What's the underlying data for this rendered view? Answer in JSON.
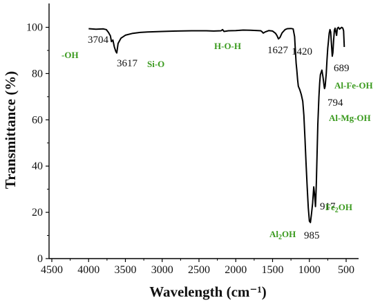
{
  "colors": {
    "line": "#000000",
    "axis": "#000000",
    "annotation_green": "#3a9a1e",
    "peak_text": "#111111"
  },
  "chart_data": {
    "type": "line",
    "title": "",
    "xlabel": "Wavelength (cm⁻¹)",
    "ylabel": "Transmittance (%)",
    "xlim": [
      4500,
      400
    ],
    "ylim": [
      0,
      105
    ],
    "x_reversed": true,
    "x_ticks": [
      4500,
      4000,
      3500,
      3000,
      2500,
      2000,
      1500,
      1000,
      500
    ],
    "y_ticks": [
      0,
      20,
      40,
      60,
      80,
      100
    ],
    "grid": false,
    "series": [
      {
        "x": [
          4000,
          3900,
          3800,
          3760,
          3730,
          3704,
          3690,
          3670,
          3650,
          3630,
          3617,
          3600,
          3560,
          3500,
          3400,
          3300,
          3200,
          3000,
          2800,
          2600,
          2400,
          2300,
          2200,
          2180,
          2160,
          2100,
          2000,
          1900,
          1800,
          1700,
          1660,
          1640,
          1627,
          1600,
          1550,
          1500,
          1460,
          1440,
          1420,
          1400,
          1370,
          1330,
          1300,
          1250,
          1220,
          1200,
          1190,
          1180,
          1170,
          1160,
          1150,
          1130,
          1110,
          1090,
          1075,
          1060,
          1045,
          1030,
          1015,
          1000,
          985,
          970,
          955,
          940,
          930,
          920,
          917,
          912,
          905,
          895,
          885,
          870,
          860,
          850,
          830,
          815,
          805,
          797,
          794,
          785,
          770,
          760,
          750,
          740,
          730,
          720,
          710,
          700,
          689,
          680,
          670,
          660,
          650,
          640,
          630,
          620,
          605,
          590,
          575,
          560,
          545,
          535,
          525
        ],
        "y": [
          99.4,
          99.2,
          99.3,
          99.0,
          97.8,
          96.3,
          93.8,
          94.5,
          91.5,
          89.5,
          88.9,
          93.0,
          95.3,
          96.6,
          97.4,
          97.8,
          98.0,
          98.2,
          98.4,
          98.5,
          98.5,
          98.4,
          98.5,
          99.0,
          98.2,
          98.5,
          98.6,
          98.8,
          98.7,
          98.6,
          98.5,
          98.0,
          97.5,
          98.0,
          98.6,
          98.4,
          97.4,
          96.4,
          95.0,
          95.6,
          97.6,
          99.0,
          99.4,
          99.5,
          99.3,
          96.0,
          90.0,
          84.5,
          81.5,
          77.5,
          74.5,
          73.0,
          71.0,
          68.0,
          62.0,
          52.0,
          41.0,
          31.0,
          22.0,
          16.2,
          15.6,
          19.5,
          24.0,
          31.0,
          28.0,
          24.0,
          22.5,
          26.0,
          33.0,
          45.0,
          58.0,
          70.0,
          76.0,
          79.5,
          81.5,
          78.5,
          76.0,
          74.0,
          73.5,
          74.5,
          80.0,
          86.0,
          91.0,
          94.0,
          97.5,
          99.0,
          98.0,
          93.0,
          87.5,
          89.0,
          94.5,
          98.8,
          99.6,
          98.0,
          96.5,
          99.5,
          100.0,
          99.2,
          99.6,
          100.0,
          99.6,
          98.5,
          91.5
        ]
      }
    ],
    "peak_labels": [
      {
        "text": "3704",
        "x": 3704
      },
      {
        "text": "3617",
        "x": 3617
      },
      {
        "text": "1627",
        "x": 1627
      },
      {
        "text": "1420",
        "x": 1420
      },
      {
        "text": "985",
        "x": 985
      },
      {
        "text": "917",
        "x": 917
      },
      {
        "text": "794",
        "x": 794
      },
      {
        "text": "689",
        "x": 689
      }
    ],
    "group_labels": [
      {
        "text": "-OH"
      },
      {
        "text": "Si-O"
      },
      {
        "text": "H-O-H"
      },
      {
        "text": "Al-Fe-OH"
      },
      {
        "text": "Al-Mg-OH"
      },
      {
        "text": "Fe",
        "sub": "2",
        "tail": "OH"
      },
      {
        "text": "Al",
        "sub": "2",
        "tail": "OH"
      }
    ]
  }
}
